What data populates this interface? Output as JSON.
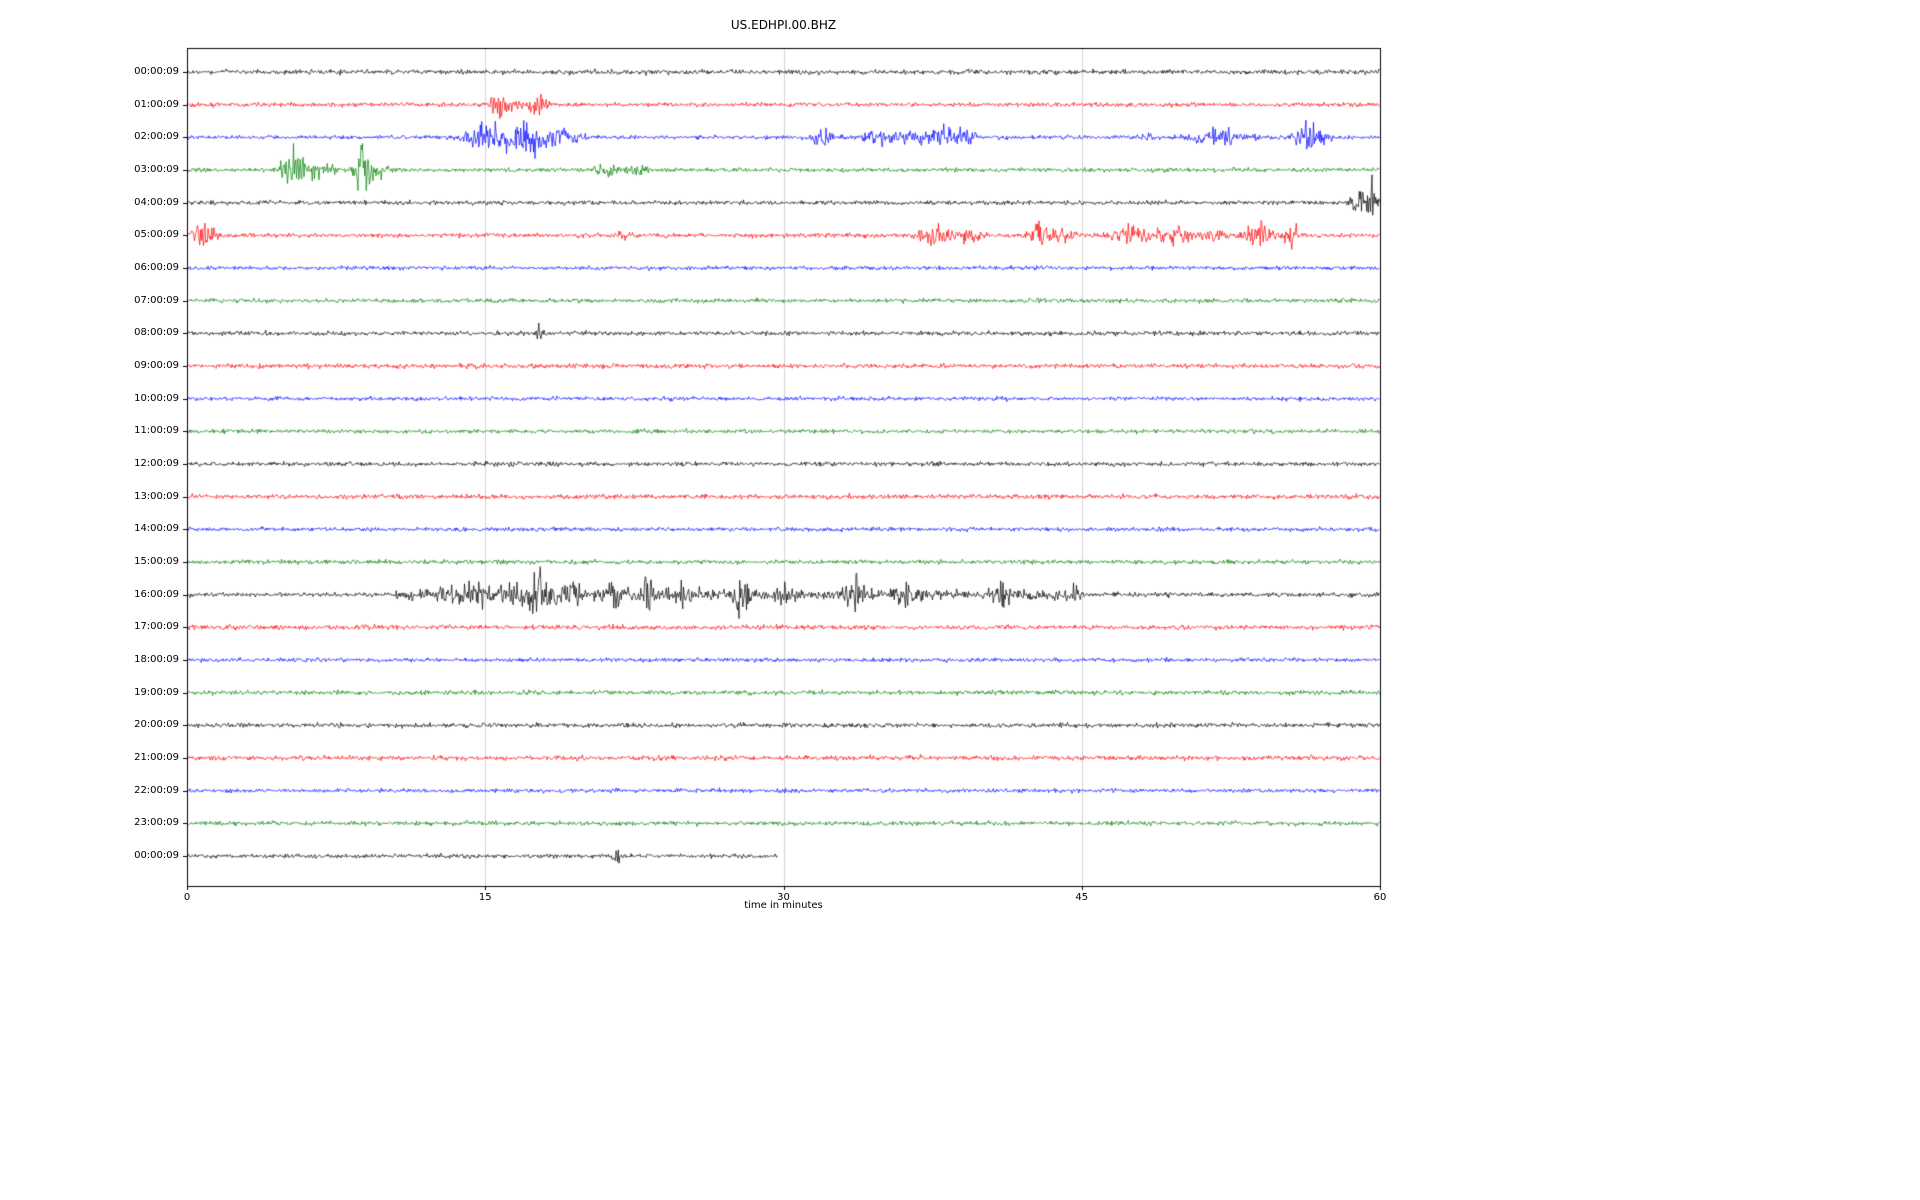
{
  "page": {
    "background": "#ffffff"
  },
  "chart_data": {
    "type": "line",
    "subtype": "seismogram-dayplot",
    "title": "US.EDHPI.00.BHZ",
    "xlabel": "time in minutes",
    "xlim": [
      0,
      60
    ],
    "xticks": [
      0,
      15,
      30,
      45,
      60
    ],
    "grid_x": [
      15,
      30,
      45
    ],
    "grid_color": "#c8c8c8",
    "axis_color": "#000000",
    "colors_cycle": [
      "#000000",
      "#ff0000",
      "#0000ff",
      "#008000"
    ],
    "rows": [
      {
        "label": "00:00:09",
        "color": "#000000",
        "noise": 2.6,
        "span": [
          0,
          60
        ],
        "events": [],
        "bands": []
      },
      {
        "label": "01:00:09",
        "color": "#ff0000",
        "noise": 2.3,
        "span": [
          0,
          60
        ],
        "events": [
          {
            "t": 15.6,
            "a": 16,
            "w": 0.25
          },
          {
            "t": 16.1,
            "a": 8,
            "w": 0.3
          },
          {
            "t": 17.6,
            "a": 14,
            "w": 0.3
          }
        ],
        "bands": []
      },
      {
        "label": "02:00:09",
        "color": "#0000ff",
        "noise": 2.2,
        "span": [
          0,
          60
        ],
        "events": [
          {
            "t": 14.6,
            "a": 12,
            "w": 0.5
          },
          {
            "t": 15.6,
            "a": 8,
            "w": 0.8
          },
          {
            "t": 17.3,
            "a": 16,
            "w": 0.7
          },
          {
            "t": 18.7,
            "a": 8,
            "w": 0.4
          },
          {
            "t": 19.5,
            "a": 5,
            "w": 0.3
          },
          {
            "t": 32.0,
            "a": 7,
            "w": 0.5
          },
          {
            "t": 34.6,
            "a": 6,
            "w": 0.4
          },
          {
            "t": 36.3,
            "a": 7,
            "w": 0.8
          },
          {
            "t": 38.3,
            "a": 9,
            "w": 0.6
          },
          {
            "t": 39.2,
            "a": 7,
            "w": 0.4
          },
          {
            "t": 48.2,
            "a": 4,
            "w": 0.3
          },
          {
            "t": 52.0,
            "a": 9,
            "w": 0.9
          },
          {
            "t": 56.2,
            "a": 12,
            "w": 0.4
          },
          {
            "t": 57.0,
            "a": 7,
            "w": 0.3
          }
        ],
        "bands": []
      },
      {
        "label": "03:00:09",
        "color": "#008000",
        "noise": 2.3,
        "span": [
          0,
          60
        ],
        "events": [
          {
            "t": 5.3,
            "a": 22,
            "w": 0.35
          },
          {
            "t": 6.3,
            "a": 8,
            "w": 0.8
          },
          {
            "t": 8.8,
            "a": 24,
            "w": 0.25
          },
          {
            "t": 9.2,
            "a": 10,
            "w": 0.5
          },
          {
            "t": 20.9,
            "a": 7,
            "w": 0.4
          },
          {
            "t": 22.6,
            "a": 5,
            "w": 0.4
          }
        ],
        "bands": []
      },
      {
        "label": "04:00:09",
        "color": "#000000",
        "noise": 2.4,
        "span": [
          0,
          60
        ],
        "events": [
          {
            "t": 58.9,
            "a": 10,
            "w": 0.3
          },
          {
            "t": 59.6,
            "a": 20,
            "w": 0.3
          }
        ],
        "bands": []
      },
      {
        "label": "05:00:09",
        "color": "#ff0000",
        "noise": 2.4,
        "span": [
          0,
          60
        ],
        "events": [
          {
            "t": 0.8,
            "a": 12,
            "w": 0.4
          },
          {
            "t": 21.9,
            "a": 5,
            "w": 0.2
          },
          {
            "t": 37.9,
            "a": 9,
            "w": 0.7
          },
          {
            "t": 39.5,
            "a": 5,
            "w": 0.4
          },
          {
            "t": 42.9,
            "a": 14,
            "w": 0.4
          },
          {
            "t": 44.2,
            "a": 7,
            "w": 0.4
          },
          {
            "t": 47.6,
            "a": 9,
            "w": 0.8
          },
          {
            "t": 49.8,
            "a": 9,
            "w": 0.6
          },
          {
            "t": 51.5,
            "a": 6,
            "w": 0.4
          },
          {
            "t": 54.0,
            "a": 12,
            "w": 0.6
          },
          {
            "t": 55.6,
            "a": 10,
            "w": 0.3
          }
        ],
        "bands": []
      },
      {
        "label": "06:00:09",
        "color": "#0000ff",
        "noise": 2.2,
        "span": [
          0,
          60
        ],
        "events": [],
        "bands": []
      },
      {
        "label": "07:00:09",
        "color": "#008000",
        "noise": 2.3,
        "span": [
          0,
          60
        ],
        "events": [],
        "bands": []
      },
      {
        "label": "08:00:09",
        "color": "#000000",
        "noise": 2.4,
        "span": [
          0,
          60
        ],
        "events": [
          {
            "t": 17.7,
            "a": 7,
            "w": 0.15
          }
        ],
        "bands": []
      },
      {
        "label": "09:00:09",
        "color": "#ff0000",
        "noise": 2.5,
        "span": [
          0,
          60
        ],
        "events": [],
        "bands": []
      },
      {
        "label": "10:00:09",
        "color": "#0000ff",
        "noise": 2.2,
        "span": [
          0,
          60
        ],
        "events": [],
        "bands": []
      },
      {
        "label": "11:00:09",
        "color": "#008000",
        "noise": 2.3,
        "span": [
          0,
          60
        ],
        "events": [],
        "bands": []
      },
      {
        "label": "12:00:09",
        "color": "#000000",
        "noise": 2.4,
        "span": [
          0,
          60
        ],
        "events": [],
        "bands": []
      },
      {
        "label": "13:00:09",
        "color": "#ff0000",
        "noise": 2.6,
        "span": [
          0,
          60
        ],
        "events": [],
        "bands": []
      },
      {
        "label": "14:00:09",
        "color": "#0000ff",
        "noise": 2.2,
        "span": [
          0,
          60
        ],
        "events": [],
        "bands": []
      },
      {
        "label": "15:00:09",
        "color": "#008000",
        "noise": 2.4,
        "span": [
          0,
          60
        ],
        "events": [],
        "bands": []
      },
      {
        "label": "16:00:09",
        "color": "#000000",
        "noise": 2.4,
        "span": [
          0,
          60
        ],
        "events": [
          {
            "t": 13.2,
            "a": 8,
            "w": 0.5
          },
          {
            "t": 14.6,
            "a": 9,
            "w": 0.4
          },
          {
            "t": 16.4,
            "a": 10,
            "w": 0.5
          },
          {
            "t": 17.5,
            "a": 28,
            "w": 0.25
          },
          {
            "t": 18.4,
            "a": 12,
            "w": 0.5
          },
          {
            "t": 19.4,
            "a": 10,
            "w": 0.3
          },
          {
            "t": 21.5,
            "a": 9,
            "w": 0.4
          },
          {
            "t": 23.2,
            "a": 22,
            "w": 0.2
          },
          {
            "t": 25.0,
            "a": 8,
            "w": 0.4
          },
          {
            "t": 27.9,
            "a": 24,
            "w": 0.2
          },
          {
            "t": 30.0,
            "a": 7,
            "w": 0.4
          },
          {
            "t": 33.6,
            "a": 20,
            "w": 0.3
          },
          {
            "t": 36.2,
            "a": 8,
            "w": 0.4
          },
          {
            "t": 41.1,
            "a": 10,
            "w": 0.25
          },
          {
            "t": 44.8,
            "a": 6,
            "w": 0.3
          }
        ],
        "bands": [
          {
            "t0": 10.5,
            "t1": 45.0,
            "a": 3.5
          }
        ]
      },
      {
        "label": "17:00:09",
        "color": "#ff0000",
        "noise": 2.5,
        "span": [
          0,
          60
        ],
        "events": [],
        "bands": []
      },
      {
        "label": "18:00:09",
        "color": "#0000ff",
        "noise": 2.2,
        "span": [
          0,
          60
        ],
        "events": [],
        "bands": []
      },
      {
        "label": "19:00:09",
        "color": "#008000",
        "noise": 2.4,
        "span": [
          0,
          60
        ],
        "events": [],
        "bands": []
      },
      {
        "label": "20:00:09",
        "color": "#000000",
        "noise": 2.6,
        "span": [
          0,
          60
        ],
        "events": [],
        "bands": []
      },
      {
        "label": "21:00:09",
        "color": "#ff0000",
        "noise": 2.6,
        "span": [
          0,
          60
        ],
        "events": [],
        "bands": []
      },
      {
        "label": "22:00:09",
        "color": "#0000ff",
        "noise": 2.2,
        "span": [
          0,
          60
        ],
        "events": [],
        "bands": []
      },
      {
        "label": "23:00:09",
        "color": "#008000",
        "noise": 2.4,
        "span": [
          0,
          60
        ],
        "events": [],
        "bands": []
      },
      {
        "label": "00:00:09",
        "color": "#000000",
        "noise": 2.2,
        "span": [
          0,
          29.7
        ],
        "events": [
          {
            "t": 21.6,
            "a": 9,
            "w": 0.15
          }
        ],
        "bands": []
      }
    ]
  }
}
